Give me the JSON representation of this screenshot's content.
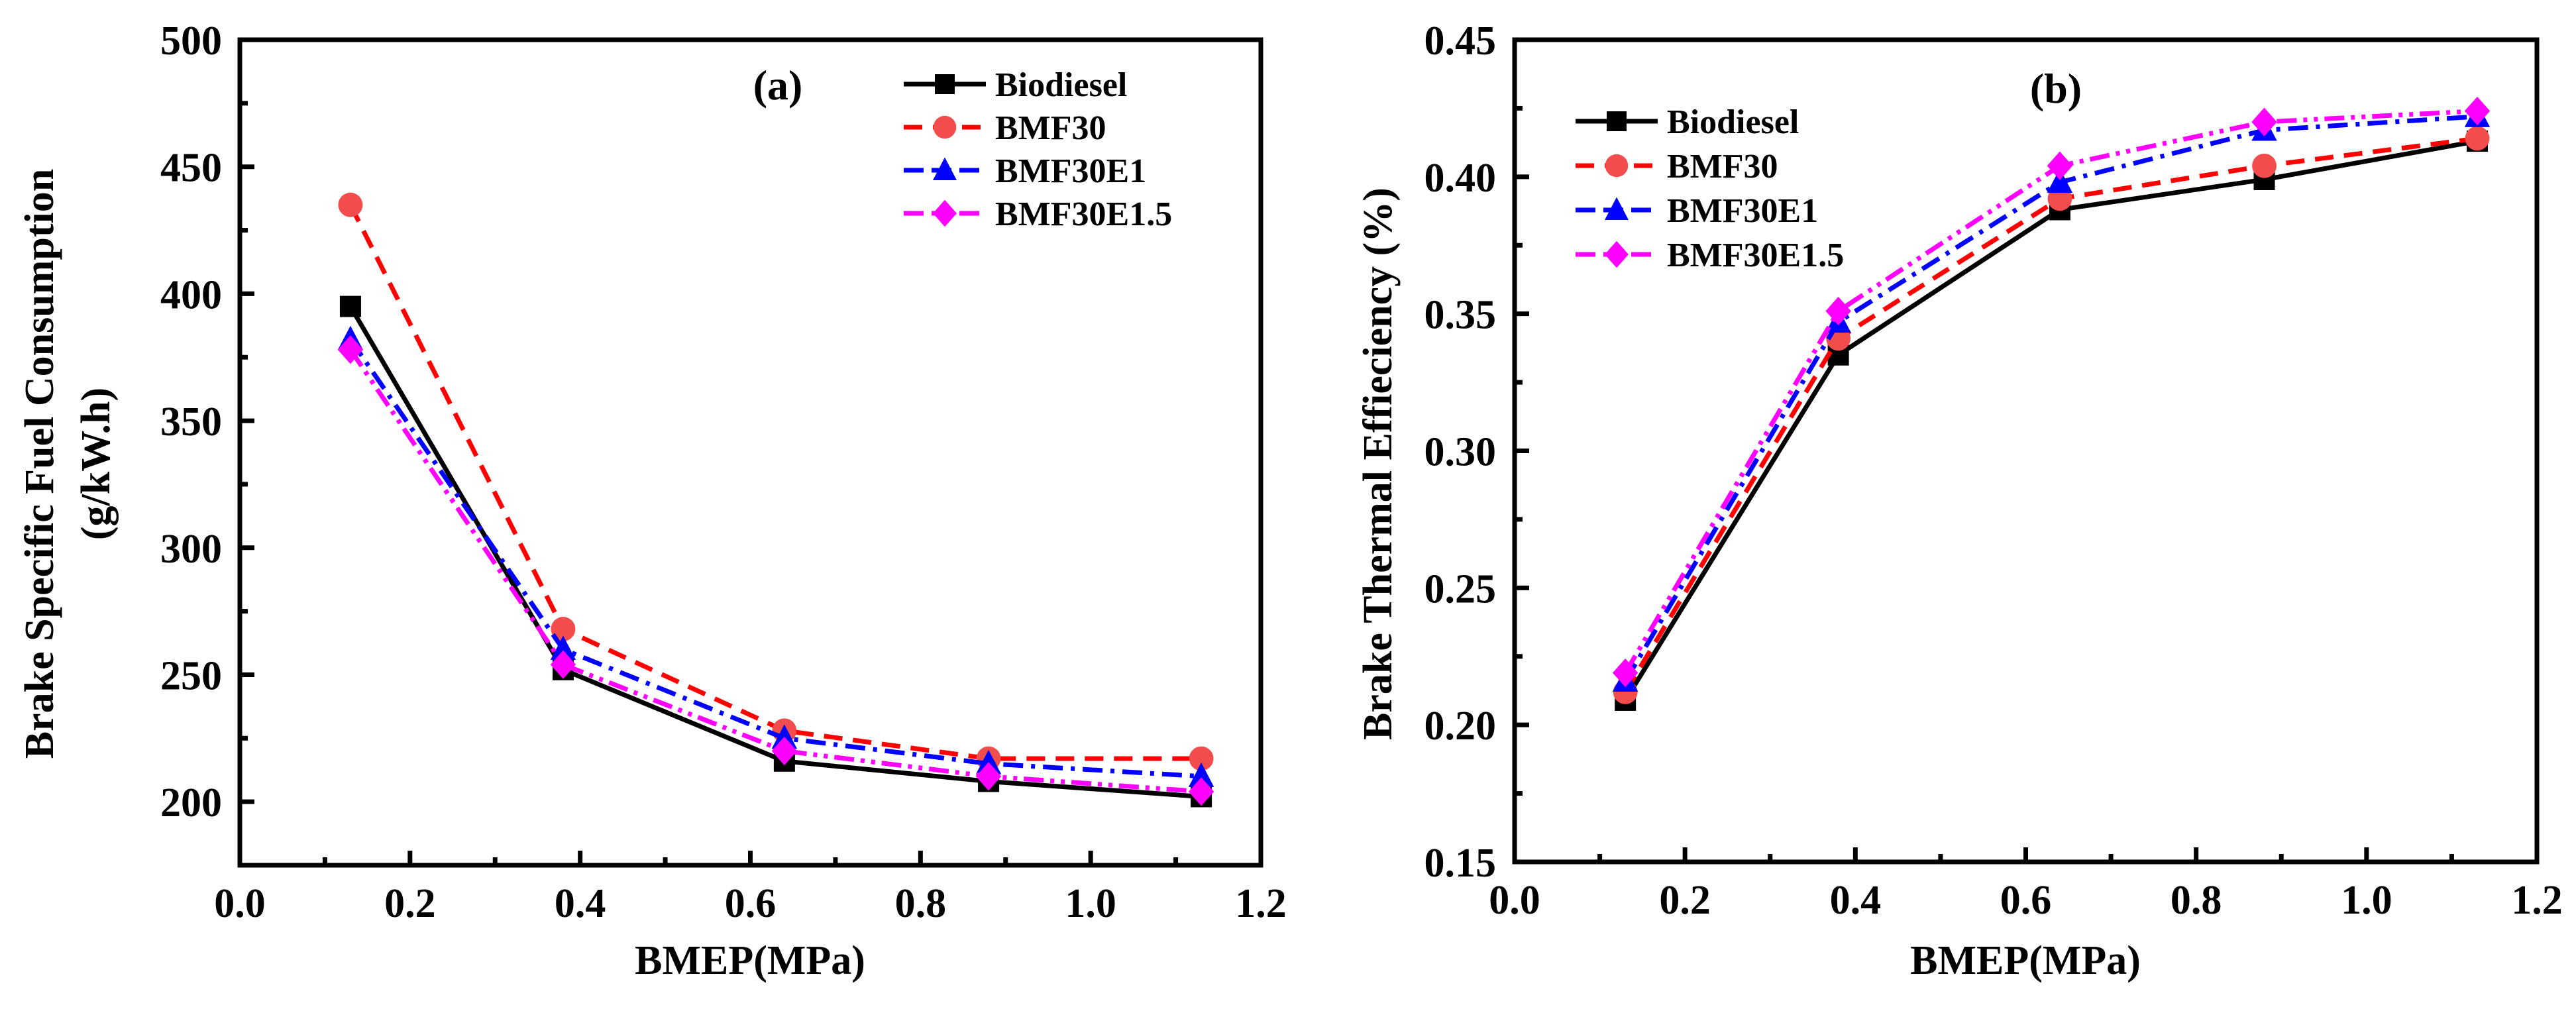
{
  "chart_data": [
    {
      "type": "line",
      "panel_label": "(a)",
      "xlabel": "BMEP(MPa)",
      "ylabel": [
        "Brake  Specific Fuel Consumption",
        "(g/kW.h)"
      ],
      "xlim": [
        0.0,
        1.2
      ],
      "ylim": [
        175,
        500
      ],
      "xticks": [
        "0.0",
        "0.2",
        "0.4",
        "0.6",
        "0.8",
        "1.0",
        "1.2"
      ],
      "yticks": [
        "200",
        "250",
        "300",
        "350",
        "400",
        "450",
        "500"
      ],
      "grid": false,
      "legend_position": "top-right",
      "x": [
        0.13,
        0.38,
        0.64,
        0.88,
        1.13
      ],
      "series": [
        {
          "name": "Biodiesel",
          "values": [
            395,
            252,
            216,
            208,
            202
          ],
          "color": "#000000",
          "marker": "square",
          "dash": "solid"
        },
        {
          "name": "BMF30",
          "values": [
            435,
            268,
            228,
            217,
            217
          ],
          "color": "#ff0000",
          "marker_color": "#f24c4c",
          "marker": "circle",
          "dash": "dash"
        },
        {
          "name": "BMF30E1",
          "values": [
            382,
            260,
            225,
            215,
            210
          ],
          "color": "#0000ff",
          "marker": "triangle",
          "dash": "dashdot"
        },
        {
          "name": "BMF30E1.5",
          "values": [
            378,
            254,
            220,
            210,
            204
          ],
          "color": "#ff00ff",
          "marker": "diamond",
          "dash": "dashdotdot"
        }
      ]
    },
    {
      "type": "line",
      "panel_label": "(b)",
      "xlabel": "BMEP(MPa)",
      "ylabel": [
        "Brake Thermal Effieciency (%)"
      ],
      "xlim": [
        0.0,
        1.2
      ],
      "ylim": [
        0.15,
        0.45
      ],
      "xticks": [
        "0.0",
        "0.2",
        "0.4",
        "0.6",
        "0.8",
        "1.0",
        "1.2"
      ],
      "yticks": [
        "0.15",
        "0.20",
        "0.25",
        "0.30",
        "0.35",
        "0.40",
        "0.45"
      ],
      "grid": false,
      "legend_position": "top-left",
      "x": [
        0.13,
        0.38,
        0.64,
        0.88,
        1.13
      ],
      "series": [
        {
          "name": "Biodiesel",
          "values": [
            0.209,
            0.335,
            0.388,
            0.399,
            0.413
          ],
          "color": "#000000",
          "marker": "square",
          "dash": "solid"
        },
        {
          "name": "BMF30",
          "values": [
            0.212,
            0.341,
            0.392,
            0.404,
            0.414
          ],
          "color": "#ff0000",
          "marker_color": "#f24c4c",
          "marker": "circle",
          "dash": "dash"
        },
        {
          "name": "BMF30E1",
          "values": [
            0.216,
            0.347,
            0.398,
            0.417,
            0.422
          ],
          "color": "#0000ff",
          "marker": "triangle",
          "dash": "dashdot"
        },
        {
          "name": "BMF30E1.5",
          "values": [
            0.219,
            0.351,
            0.404,
            0.42,
            0.424
          ],
          "color": "#ff00ff",
          "marker": "diamond",
          "dash": "dashdotdot"
        }
      ]
    }
  ]
}
